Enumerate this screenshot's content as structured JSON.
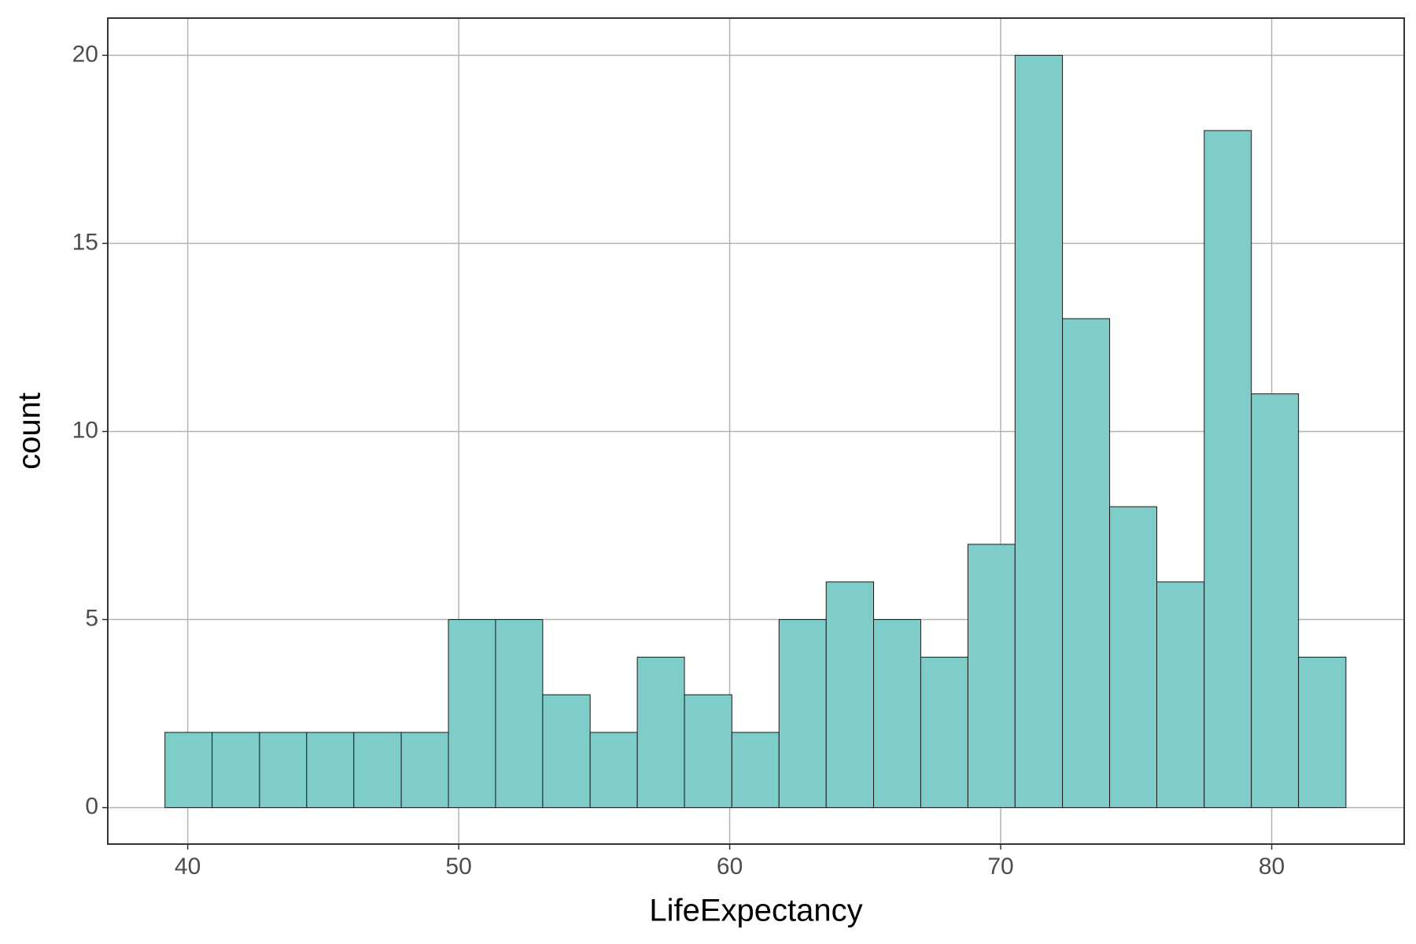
{
  "chart_data": {
    "type": "histogram",
    "x_label": "LifeExpectancy",
    "y_label": "count",
    "bins": [
      39.16,
      40.9,
      42.65,
      44.39,
      46.13,
      47.88,
      49.62,
      51.36,
      53.1,
      54.85,
      56.59,
      58.33,
      60.08,
      61.82,
      63.56,
      65.31,
      67.05,
      68.79,
      70.53,
      72.28,
      74.02,
      75.76,
      77.51,
      79.25,
      80.99,
      82.74
    ],
    "counts": [
      2,
      2,
      2,
      2,
      2,
      2,
      5,
      5,
      3,
      2,
      4,
      3,
      2,
      5,
      6,
      5,
      4,
      7,
      20,
      13,
      8,
      6,
      18,
      11,
      4
    ],
    "color": "#7fcdc9",
    "edgecolor": "#1a1a1a",
    "xlim": [
      37.05,
      84.89
    ],
    "xticks": [
      40,
      50,
      60,
      70,
      80
    ],
    "ylim": [
      -0.97,
      20.99
    ],
    "yticks": [
      0,
      5,
      10,
      15,
      20
    ],
    "grid": true
  }
}
